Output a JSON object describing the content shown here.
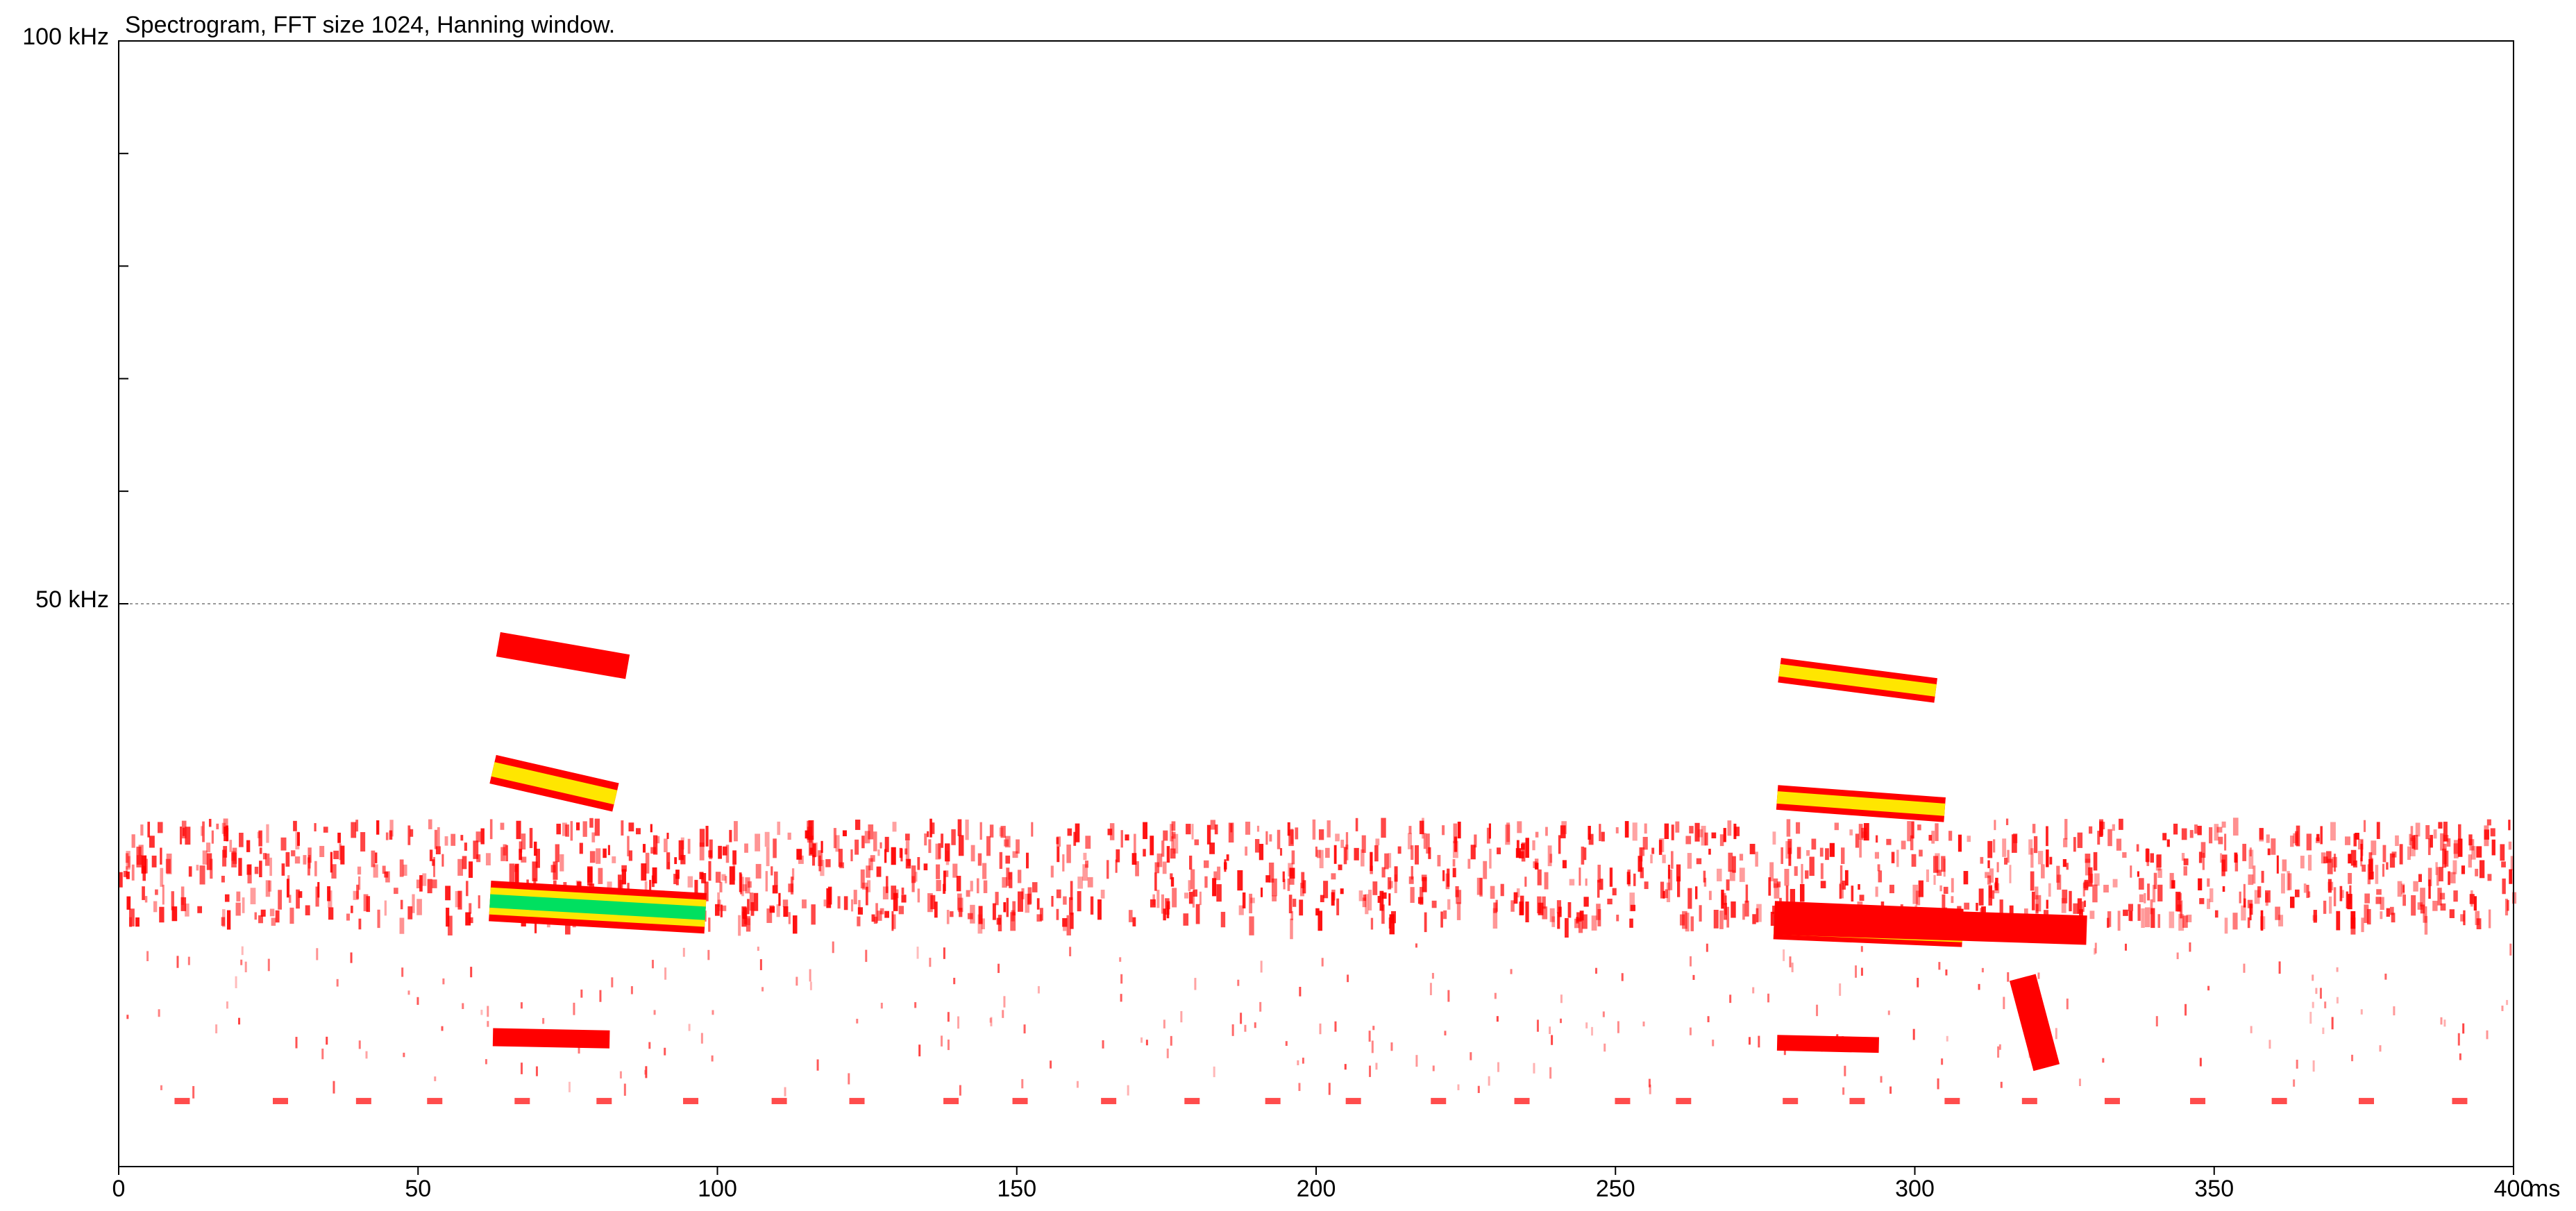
{
  "chart_data": {
    "type": "spectrogram",
    "title": "Spectrogram, FFT size 1024, Hanning window.",
    "x_unit": "ms",
    "xlim": [
      0,
      400
    ],
    "xticks": [
      0,
      50,
      100,
      150,
      200,
      250,
      300,
      350,
      400
    ],
    "ylim": [
      0,
      100
    ],
    "yticks": [
      {
        "value": 100,
        "label": "100 kHz"
      },
      {
        "value": 50,
        "label": "50 kHz"
      }
    ],
    "yminorticks": [
      60,
      70,
      80,
      90
    ],
    "reference_line": 50,
    "reference_color": "#999999",
    "noise_color": "#ff0000",
    "strokes": [
      {
        "t": [
          63.4,
          85
        ],
        "f": [
          46.4,
          44.4
        ],
        "bandwidth": 2.2,
        "colors": [
          "#ff0000"
        ]
      },
      {
        "t": [
          62.5,
          83
        ],
        "f": [
          35.3,
          32.8
        ],
        "bandwidth": 2.6,
        "colors": [
          "#ff0000",
          "#ffe600"
        ]
      },
      {
        "t": [
          62,
          98
        ],
        "f": [
          23.6,
          22.5
        ],
        "bandwidth": 3.6,
        "colors": [
          "#ff0000",
          "#ffe600",
          "#00e060"
        ]
      },
      {
        "t": [
          62.5,
          82
        ],
        "f": [
          11.5,
          11.3
        ],
        "bandwidth": 1.6,
        "colors": [
          "#ff0000"
        ]
      },
      {
        "t": [
          277.4,
          303.5
        ],
        "f": [
          44.1,
          42.3
        ],
        "bandwidth": 2.2,
        "colors": [
          "#ff0000",
          "#ffe600"
        ]
      },
      {
        "t": [
          277,
          305
        ],
        "f": [
          32.8,
          31.7
        ],
        "bandwidth": 2.2,
        "colors": [
          "#ff0000",
          "#ffe600"
        ]
      },
      {
        "t": [
          276.5,
          308
        ],
        "f": [
          21.9,
          21.2
        ],
        "bandwidth": 3.4,
        "colors": [
          "#ff0000",
          "#ffe600",
          "#00e060",
          "#2080ff"
        ]
      },
      {
        "t": [
          276.5,
          328.7
        ],
        "f": [
          21.9,
          21.0
        ],
        "bandwidth": 2.6,
        "colors": [
          "#ff0000"
        ]
      },
      {
        "t": [
          277,
          294
        ],
        "f": [
          11,
          10.8
        ],
        "bandwidth": 1.4,
        "colors": [
          "#ff0000"
        ]
      },
      {
        "t": [
          318,
          322
        ],
        "f": [
          16.8,
          8.8
        ],
        "bandwidth": 2.4,
        "colors": [
          "#ff0000"
        ]
      }
    ]
  }
}
